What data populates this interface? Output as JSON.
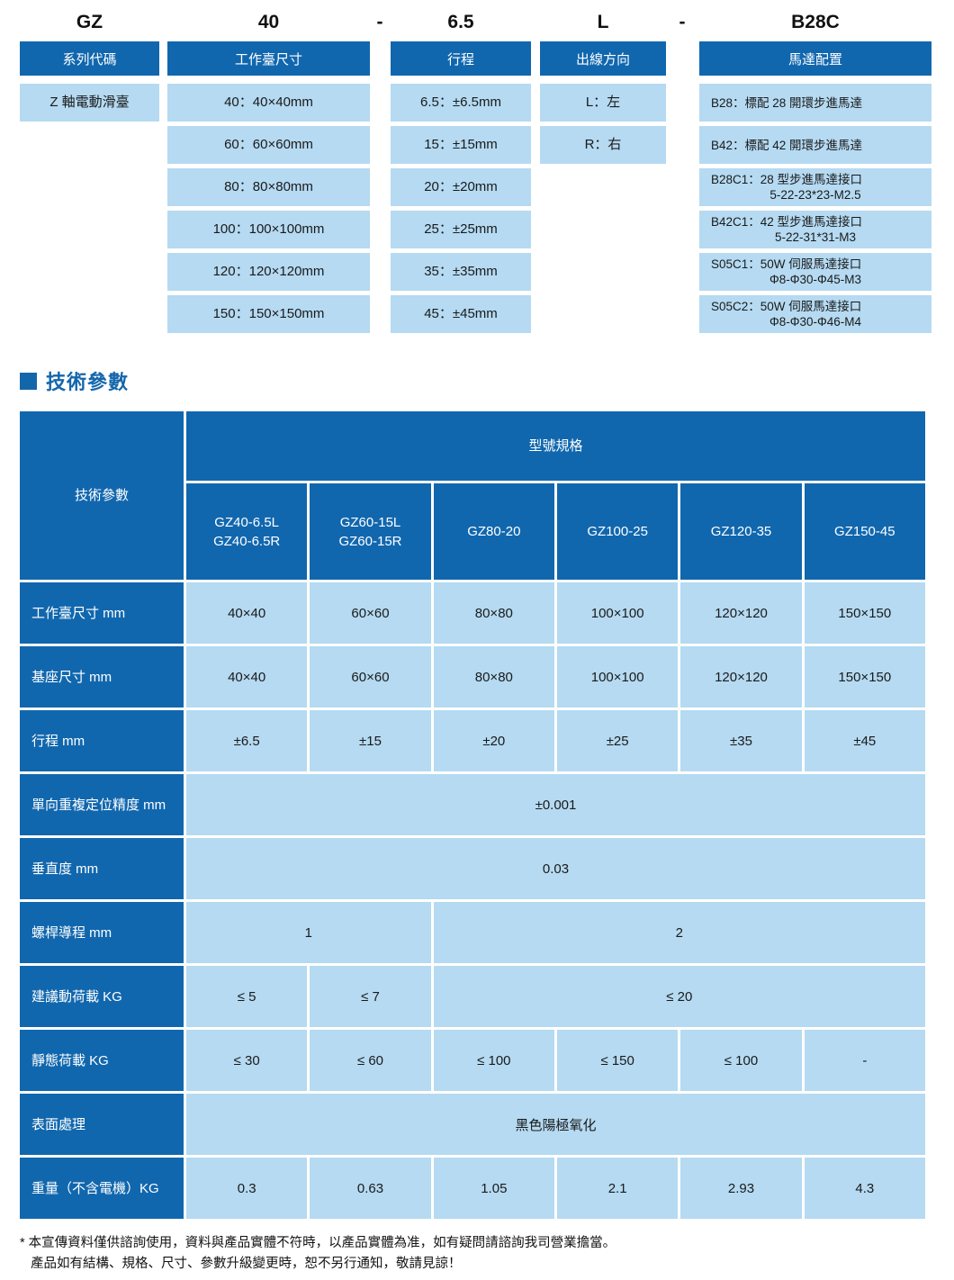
{
  "colors": {
    "dark_blue": "#1167ae",
    "light_blue": "#b5daf2",
    "title_blue": "#1466ab",
    "text_black": "#1a1a1a"
  },
  "model_code": {
    "separators": [
      "-",
      "-"
    ],
    "columns": [
      {
        "code": "GZ",
        "header": "系列代碼",
        "align": "center",
        "items": [
          [
            "Z 軸電動滑臺"
          ]
        ]
      },
      {
        "code": "40",
        "header": "工作臺尺寸",
        "align": "center",
        "items": [
          [
            "40：40×40mm"
          ],
          [
            "60：60×60mm"
          ],
          [
            "80：80×80mm"
          ],
          [
            "100：100×100mm"
          ],
          [
            "120：120×120mm"
          ],
          [
            "150：150×150mm"
          ]
        ]
      },
      {
        "code": "6.5",
        "header": "行程",
        "align": "center",
        "items": [
          [
            "6.5：±6.5mm"
          ],
          [
            "15：±15mm"
          ],
          [
            "20：±20mm"
          ],
          [
            "25：±25mm"
          ],
          [
            "35：±35mm"
          ],
          [
            "45：±45mm"
          ]
        ]
      },
      {
        "code": "L",
        "header": "出線方向",
        "align": "center",
        "items": [
          [
            "L：左"
          ],
          [
            "R：右"
          ]
        ]
      },
      {
        "code": "B28C",
        "header": "馬達配置",
        "align": "left",
        "items": [
          [
            "B28：標配 28 開環步進馬達"
          ],
          [
            "B42：標配 42 開環步進馬達"
          ],
          [
            "B28C1：28 型步進馬達接口",
            "5-22-23*23-M2.5"
          ],
          [
            "B42C1：42 型步進馬達接口",
            "5-22-31*31-M3"
          ],
          [
            "S05C1：50W 伺服馬達接口",
            "Φ8-Φ30-Φ45-M3"
          ],
          [
            "S05C2：50W 伺服馬達接口",
            "Φ8-Φ30-Φ46-M4"
          ]
        ]
      }
    ]
  },
  "tech_section": {
    "title": "技術參數",
    "table": {
      "corner_label": "技術參數",
      "group_header": "型號規格",
      "models": [
        [
          "GZ40-6.5L",
          "GZ40-6.5R"
        ],
        [
          "GZ60-15L",
          "GZ60-15R"
        ],
        [
          "GZ80-20"
        ],
        [
          "GZ100-25"
        ],
        [
          "GZ120-35"
        ],
        [
          "GZ150-45"
        ]
      ],
      "rows": [
        {
          "label": "工作臺尺寸 mm",
          "cells": [
            {
              "text": "40×40",
              "span": 1
            },
            {
              "text": "60×60",
              "span": 1
            },
            {
              "text": "80×80",
              "span": 1
            },
            {
              "text": "100×100",
              "span": 1
            },
            {
              "text": "120×120",
              "span": 1
            },
            {
              "text": "150×150",
              "span": 1
            }
          ]
        },
        {
          "label": "基座尺寸 mm",
          "cells": [
            {
              "text": "40×40",
              "span": 1
            },
            {
              "text": "60×60",
              "span": 1
            },
            {
              "text": "80×80",
              "span": 1
            },
            {
              "text": "100×100",
              "span": 1
            },
            {
              "text": "120×120",
              "span": 1
            },
            {
              "text": "150×150",
              "span": 1
            }
          ]
        },
        {
          "label": "行程 mm",
          "cells": [
            {
              "text": "±6.5",
              "span": 1
            },
            {
              "text": "±15",
              "span": 1
            },
            {
              "text": "±20",
              "span": 1
            },
            {
              "text": "±25",
              "span": 1
            },
            {
              "text": "±35",
              "span": 1
            },
            {
              "text": "±45",
              "span": 1
            }
          ]
        },
        {
          "label": "單向重複定位精度 mm",
          "cells": [
            {
              "text": "±0.001",
              "span": 6
            }
          ]
        },
        {
          "label": "垂直度 mm",
          "cells": [
            {
              "text": "0.03",
              "span": 6
            }
          ]
        },
        {
          "label": "螺桿導程 mm",
          "cells": [
            {
              "text": "1",
              "span": 2
            },
            {
              "text": "2",
              "span": 4
            }
          ]
        },
        {
          "label": "建議動荷載 KG",
          "cells": [
            {
              "text": "≤ 5",
              "span": 1
            },
            {
              "text": "≤ 7",
              "span": 1
            },
            {
              "text": "≤ 20",
              "span": 4
            }
          ]
        },
        {
          "label": "靜態荷載 KG",
          "cells": [
            {
              "text": "≤ 30",
              "span": 1
            },
            {
              "text": "≤ 60",
              "span": 1
            },
            {
              "text": "≤ 100",
              "span": 1
            },
            {
              "text": "≤ 150",
              "span": 1
            },
            {
              "text": "≤ 100",
              "span": 1
            },
            {
              "text": "-",
              "span": 1
            }
          ]
        },
        {
          "label": "表面處理",
          "cells": [
            {
              "text": "黑色陽極氧化",
              "span": 6
            }
          ]
        },
        {
          "label": "重量（不含電機）KG",
          "cells": [
            {
              "text": "0.3",
              "span": 1
            },
            {
              "text": "0.63",
              "span": 1
            },
            {
              "text": "1.05",
              "span": 1
            },
            {
              "text": "2.1",
              "span": 1
            },
            {
              "text": "2.93",
              "span": 1
            },
            {
              "text": "4.3",
              "span": 1
            }
          ]
        }
      ]
    }
  },
  "footnote": {
    "line1": "* 本宣傳資料僅供諮詢使用，資料與產品實體不符時，以產品實體為准，如有疑問請諮詢我司營業擔當。",
    "line2": "產品如有結構、規格、尺寸、參數升級變更時，恕不另行通知，敬請見諒！"
  }
}
